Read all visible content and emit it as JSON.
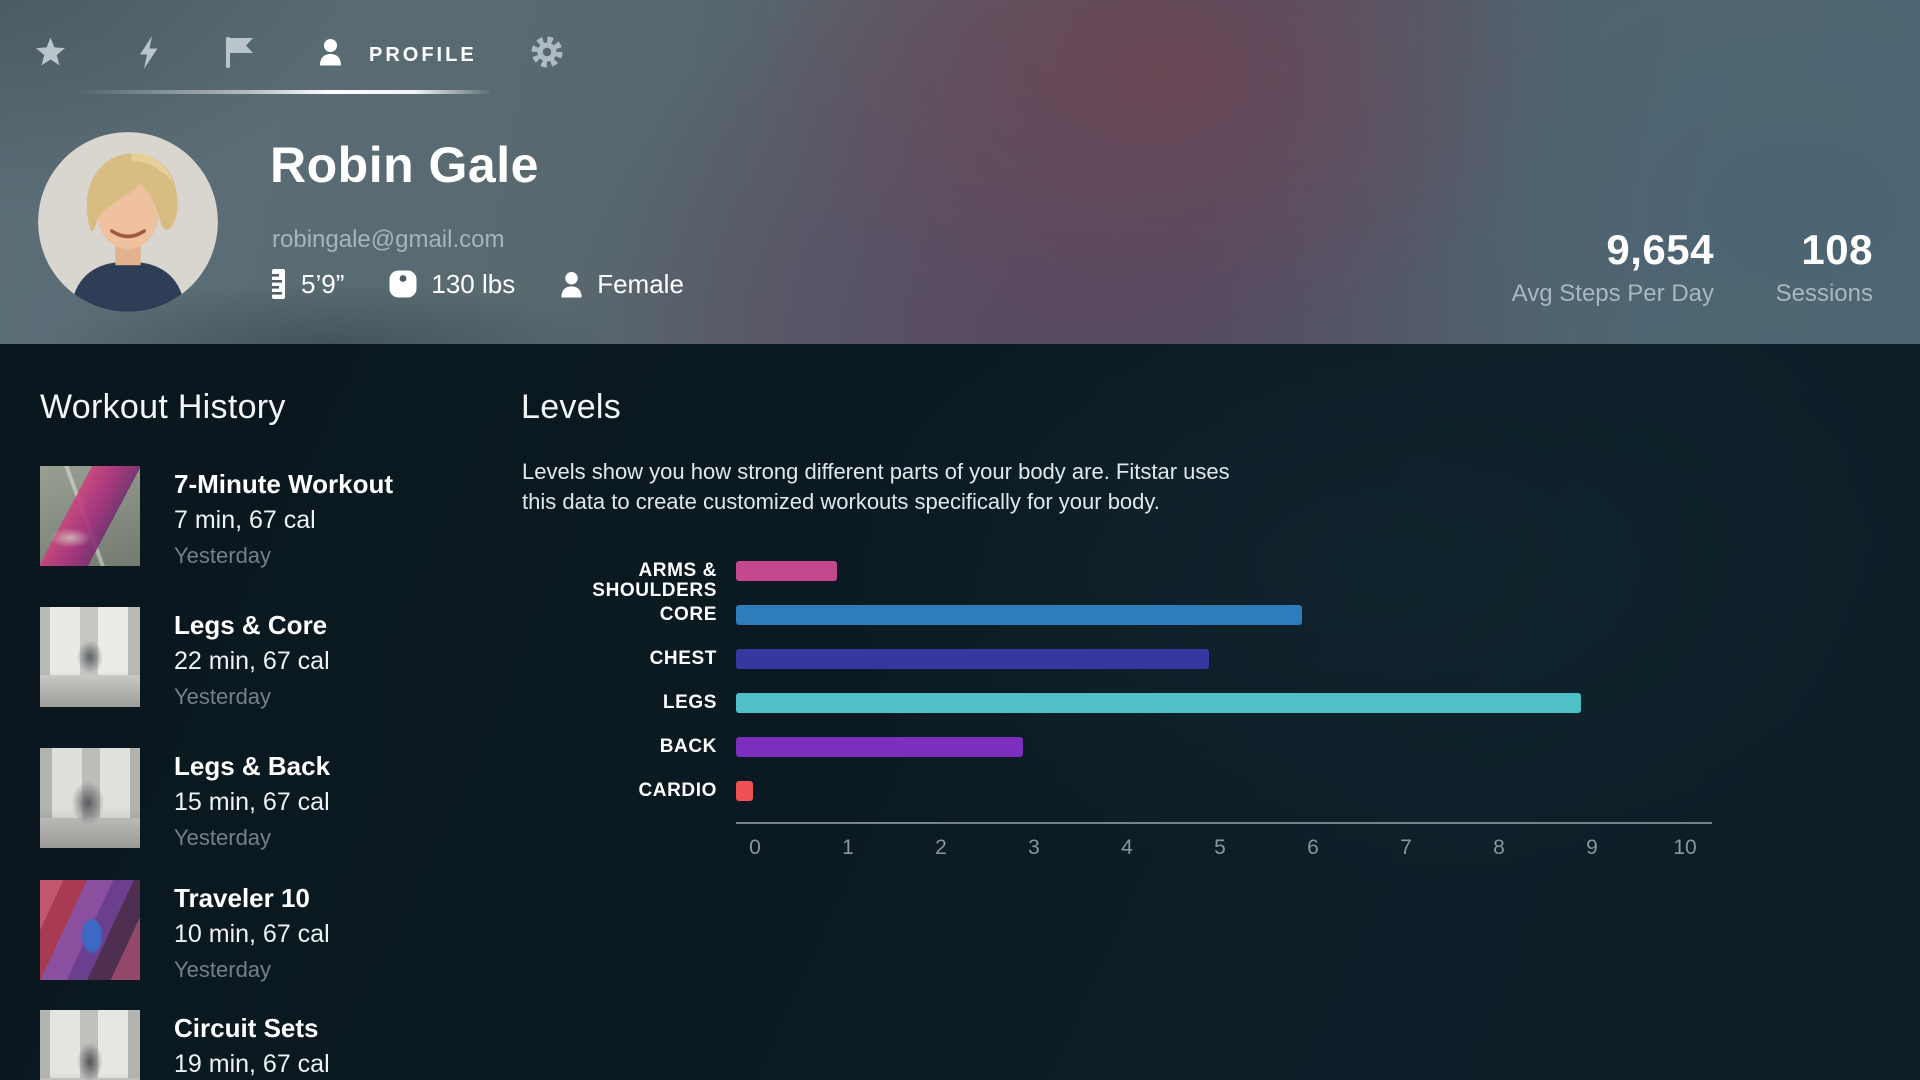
{
  "nav": {
    "tabs": [
      {
        "name": "favorites",
        "icon": "star-icon"
      },
      {
        "name": "activity",
        "icon": "bolt-icon"
      },
      {
        "name": "challenges",
        "icon": "flag-icon"
      },
      {
        "name": "profile",
        "icon": "person-icon",
        "label": "PROFILE",
        "active": true
      },
      {
        "name": "settings",
        "icon": "gear-icon"
      }
    ]
  },
  "profile": {
    "name": "Robin Gale",
    "email": "robingale@gmail.com",
    "height": "5’9”",
    "weight": "130 lbs",
    "gender": "Female"
  },
  "stats": [
    {
      "value": "9,654",
      "label": "Avg Steps Per Day"
    },
    {
      "value": "108",
      "label": "Sessions"
    }
  ],
  "workout_history": {
    "title": "Workout History",
    "items": [
      {
        "name": "7-Minute Workout",
        "meta": "7 min, 67 cal",
        "date": "Yesterday",
        "thumb": "situps-pink"
      },
      {
        "name": "Legs & Core",
        "meta": "22 min, 67 cal",
        "date": "Yesterday",
        "thumb": "gym-squat"
      },
      {
        "name": "Legs & Back",
        "meta": "15 min, 67 cal",
        "date": "Yesterday",
        "thumb": "gym-run"
      },
      {
        "name": "Traveler 10",
        "meta": "10 min, 67 cal",
        "date": "Yesterday",
        "thumb": "treadmill"
      },
      {
        "name": "Circuit Sets",
        "meta": "19 min, 67 cal",
        "date": "",
        "thumb": "gym-stand"
      }
    ]
  },
  "levels": {
    "title": "Levels",
    "description": "Levels show you how strong different parts of your body are. Fitstar uses\nthis data to create customized workouts specifically for your body."
  },
  "chart_data": {
    "type": "bar",
    "orientation": "horizontal",
    "title": "Levels",
    "categories": [
      "ARMS & SHOULDERS",
      "CORE",
      "CHEST",
      "LEGS",
      "BACK",
      "CARDIO"
    ],
    "values": [
      1,
      6,
      5,
      9,
      3,
      0.1
    ],
    "bar_colors": [
      "#c5488e",
      "#2f7cba",
      "#37379f",
      "#4fc0c7",
      "#7c2ebc",
      "#f05156"
    ],
    "xlim": [
      0,
      10
    ],
    "xticks": [
      0,
      1,
      2,
      3,
      4,
      5,
      6,
      7,
      8,
      9,
      10
    ],
    "grid": false,
    "legend": "none"
  },
  "icons": {
    "nav": [
      "star-icon",
      "bolt-icon",
      "flag-icon",
      "person-icon",
      "gear-icon"
    ],
    "attributes": [
      "ruler-icon",
      "scale-icon",
      "person-icon"
    ]
  },
  "colors": {
    "content_bg": "#0b1a22",
    "header_slate": "#5b6e77",
    "header_mauve": "#5a4b5e",
    "text_muted": "#a7b4bc",
    "axis": "#75828a",
    "active_tab": "#ffffff"
  }
}
